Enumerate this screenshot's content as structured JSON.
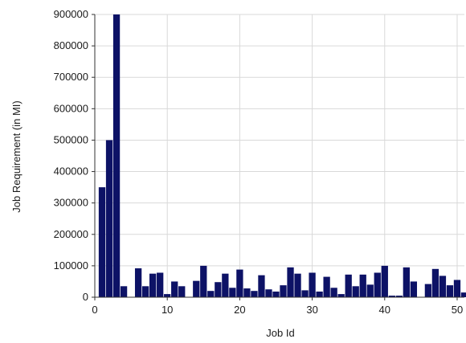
{
  "chart_data": {
    "type": "bar",
    "title": "",
    "xlabel": "Job Id",
    "ylabel": "Job Requirement (in MI)",
    "xlim": [
      0,
      51
    ],
    "ylim": [
      0,
      900000
    ],
    "x_ticks": [
      0,
      10,
      20,
      30,
      40,
      50
    ],
    "x_tick_labels": [
      "0",
      "10",
      "20",
      "30",
      "40",
      "50"
    ],
    "y_ticks": [
      0,
      100000,
      200000,
      300000,
      400000,
      500000,
      600000,
      700000,
      800000,
      900000
    ],
    "y_tick_labels": [
      "0",
      "100000",
      "200000",
      "300000",
      "400000",
      "500000",
      "600000",
      "700000",
      "800000",
      "900000"
    ],
    "grid": true,
    "bar_color": "#0d1266",
    "x": [
      1,
      2,
      3,
      4,
      5,
      6,
      7,
      8,
      9,
      10,
      11,
      12,
      13,
      14,
      15,
      16,
      17,
      18,
      19,
      20,
      21,
      22,
      23,
      24,
      25,
      26,
      27,
      28,
      29,
      30,
      31,
      32,
      33,
      34,
      35,
      36,
      37,
      38,
      39,
      40,
      41,
      42,
      43,
      44,
      45,
      46,
      47,
      48,
      49,
      50,
      51
    ],
    "values": [
      350000,
      500000,
      900000,
      35000,
      0,
      92000,
      35000,
      75000,
      78000,
      10000,
      50000,
      35000,
      0,
      52000,
      100000,
      20000,
      48000,
      75000,
      30000,
      88000,
      28000,
      20000,
      70000,
      25000,
      18000,
      38000,
      95000,
      75000,
      22000,
      78000,
      18000,
      65000,
      30000,
      10000,
      72000,
      35000,
      72000,
      40000,
      78000,
      100000,
      5000,
      5000,
      95000,
      50000,
      0,
      42000,
      90000,
      68000,
      38000,
      55000,
      15000
    ]
  }
}
